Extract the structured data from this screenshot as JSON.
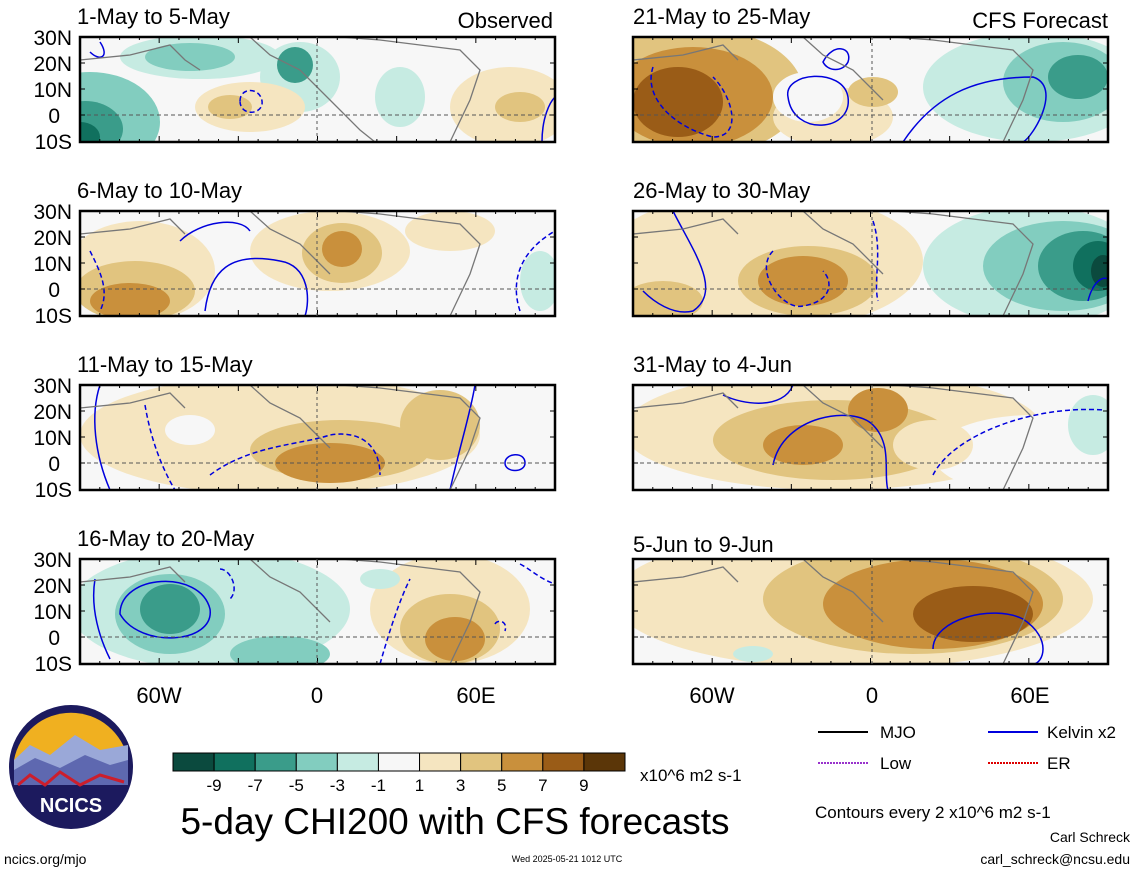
{
  "observed_label": "Observed",
  "forecast_label": "CFS Forecast",
  "panels": [
    {
      "title": "1-May to 5-May"
    },
    {
      "title": "6-May to 10-May"
    },
    {
      "title": "11-May to 15-May"
    },
    {
      "title": "16-May to 20-May"
    },
    {
      "title": "21-May to 25-May"
    },
    {
      "title": "26-May to 30-May"
    },
    {
      "title": "31-May to 4-Jun"
    },
    {
      "title": "5-Jun to 9-Jun"
    }
  ],
  "lat_labels": [
    "30N",
    "20N",
    "10N",
    "0",
    "10S"
  ],
  "lon_labels": [
    "60W",
    "0",
    "60E"
  ],
  "colorbar": {
    "colors": [
      "#0b4a3e",
      "#10705e",
      "#3a9c8a",
      "#82cdbf",
      "#c6ebe2",
      "#f7f7f7",
      "#f5e5c0",
      "#e1c47f",
      "#c9903c",
      "#9a5c17",
      "#5b3608"
    ],
    "ticks": [
      "-9",
      "-7",
      "-5",
      "-3",
      "-1",
      "1",
      "3",
      "5",
      "7",
      "9"
    ],
    "units": "x10^6 m2 s-1"
  },
  "main_title": "5-day CHI200 with CFS forecasts",
  "legend": [
    {
      "label": "MJO",
      "color": "#000000"
    },
    {
      "label": "Kelvin x2",
      "color": "#0000dd"
    },
    {
      "label": "Low",
      "color": "#9933cc"
    },
    {
      "label": "ER",
      "color": "#dd0000"
    }
  ],
  "contours_note": "Contours every 2 x10^6 m2 s-1",
  "author": "Carl Schreck",
  "email": "carl_schreck@ncsu.edu",
  "website": "ncics.org/mjo",
  "timestamp": "Wed 2025-05-21 1012 UTC",
  "logo_text": "NCICS"
}
